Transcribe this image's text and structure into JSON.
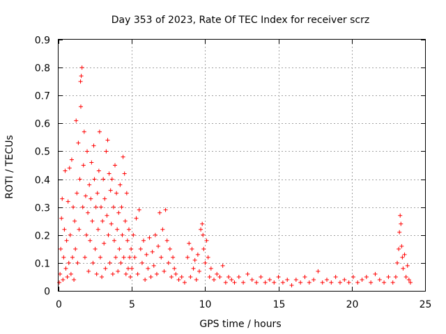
{
  "chart_data": {
    "type": "scatter",
    "title": "Day 353 of 2023, Rate Of TEC Index for receiver scrz",
    "xlabel": "GPS time / hours",
    "ylabel": "ROTI / TECUs",
    "xlim": [
      0,
      25
    ],
    "ylim": [
      0,
      0.9
    ],
    "xticks": [
      0,
      5,
      10,
      15,
      20,
      25
    ],
    "xtick_labels": [
      "0",
      "5",
      "10",
      "15",
      "20",
      "25"
    ],
    "yticks": [
      0,
      0.1,
      0.2,
      0.3,
      0.4,
      0.5,
      0.6,
      0.7,
      0.8,
      0.9
    ],
    "ytick_labels": [
      "0",
      "0.1",
      "0.2",
      "0.3",
      "0.4",
      "0.5",
      "0.6",
      "0.7",
      "0.8",
      "0.9"
    ],
    "grid": true,
    "marker": "+",
    "color": "#ff0000",
    "series": [
      {
        "name": "ROTI",
        "points": [
          [
            0.05,
            0.03
          ],
          [
            0.1,
            0.06
          ],
          [
            0.15,
            0.15
          ],
          [
            0.2,
            0.26
          ],
          [
            0.25,
            0.33
          ],
          [
            0.3,
            0.04
          ],
          [
            0.35,
            0.12
          ],
          [
            0.4,
            0.22
          ],
          [
            0.45,
            0.43
          ],
          [
            0.5,
            0.08
          ],
          [
            0.55,
            0.18
          ],
          [
            0.6,
            0.05
          ],
          [
            0.65,
            0.32
          ],
          [
            0.7,
            0.1
          ],
          [
            0.75,
            0.44
          ],
          [
            0.8,
            0.2
          ],
          [
            0.85,
            0.06
          ],
          [
            0.9,
            0.47
          ],
          [
            0.95,
            0.12
          ],
          [
            1.0,
            0.3
          ],
          [
            1.05,
            0.04
          ],
          [
            1.1,
            0.25
          ],
          [
            1.15,
            0.15
          ],
          [
            1.2,
            0.61
          ],
          [
            1.25,
            0.35
          ],
          [
            1.3,
            0.1
          ],
          [
            1.35,
            0.53
          ],
          [
            1.4,
            0.22
          ],
          [
            1.45,
            0.4
          ],
          [
            1.5,
            0.75
          ],
          [
            1.52,
            0.66
          ],
          [
            1.55,
            0.77
          ],
          [
            1.6,
            0.8
          ],
          [
            1.65,
            0.3
          ],
          [
            1.7,
            0.45
          ],
          [
            1.75,
            0.57
          ],
          [
            1.8,
            0.12
          ],
          [
            1.85,
            0.34
          ],
          [
            1.9,
            0.2
          ],
          [
            1.95,
            0.5
          ],
          [
            2.0,
            0.28
          ],
          [
            2.05,
            0.07
          ],
          [
            2.1,
            0.38
          ],
          [
            2.15,
            0.18
          ],
          [
            2.2,
            0.33
          ],
          [
            2.25,
            0.46
          ],
          [
            2.3,
            0.25
          ],
          [
            2.35,
            0.1
          ],
          [
            2.4,
            0.52
          ],
          [
            2.45,
            0.4
          ],
          [
            2.5,
            0.15
          ],
          [
            2.55,
            0.3
          ],
          [
            2.6,
            0.06
          ],
          [
            2.65,
            0.35
          ],
          [
            2.7,
            0.22
          ],
          [
            2.75,
            0.43
          ],
          [
            2.8,
            0.57
          ],
          [
            2.85,
            0.12
          ],
          [
            2.9,
            0.3
          ],
          [
            2.95,
            0.05
          ],
          [
            3.0,
            0.25
          ],
          [
            3.05,
            0.4
          ],
          [
            3.1,
            0.17
          ],
          [
            3.15,
            0.33
          ],
          [
            3.2,
            0.08
          ],
          [
            3.25,
            0.5
          ],
          [
            3.3,
            0.27
          ],
          [
            3.35,
            0.54
          ],
          [
            3.4,
            0.2
          ],
          [
            3.45,
            0.42
          ],
          [
            3.5,
            0.1
          ],
          [
            3.55,
            0.36
          ],
          [
            3.6,
            0.24
          ],
          [
            3.65,
            0.4
          ],
          [
            3.7,
            0.06
          ],
          [
            3.75,
            0.3
          ],
          [
            3.8,
            0.18
          ],
          [
            3.85,
            0.45
          ],
          [
            3.9,
            0.12
          ],
          [
            3.95,
            0.35
          ],
          [
            4.0,
            0.22
          ],
          [
            4.05,
            0.07
          ],
          [
            4.1,
            0.28
          ],
          [
            4.15,
            0.15
          ],
          [
            4.2,
            0.38
          ],
          [
            4.25,
            0.1
          ],
          [
            4.3,
            0.3
          ],
          [
            4.35,
            0.2
          ],
          [
            4.4,
            0.48
          ],
          [
            4.45,
            0.12
          ],
          [
            4.5,
            0.42
          ],
          [
            4.55,
            0.25
          ],
          [
            4.6,
            0.06
          ],
          [
            4.65,
            0.35
          ],
          [
            4.7,
            0.18
          ],
          [
            4.75,
            0.08
          ],
          [
            4.8,
            0.22
          ],
          [
            4.85,
            0.12
          ],
          [
            4.9,
            0.05
          ],
          [
            4.95,
            0.15
          ],
          [
            5.0,
            0.08
          ],
          [
            5.1,
            0.2
          ],
          [
            5.2,
            0.12
          ],
          [
            5.3,
            0.26
          ],
          [
            5.4,
            0.06
          ],
          [
            5.5,
            0.29
          ],
          [
            5.6,
            0.15
          ],
          [
            5.7,
            0.1
          ],
          [
            5.8,
            0.18
          ],
          [
            5.9,
            0.04
          ],
          [
            6.0,
            0.13
          ],
          [
            6.1,
            0.08
          ],
          [
            6.2,
            0.19
          ],
          [
            6.3,
            0.05
          ],
          [
            6.4,
            0.14
          ],
          [
            6.5,
            0.09
          ],
          [
            6.6,
            0.2
          ],
          [
            6.7,
            0.06
          ],
          [
            6.8,
            0.16
          ],
          [
            6.9,
            0.28
          ],
          [
            7.0,
            0.12
          ],
          [
            7.1,
            0.22
          ],
          [
            7.2,
            0.07
          ],
          [
            7.3,
            0.29
          ],
          [
            7.4,
            0.18
          ],
          [
            7.5,
            0.1
          ],
          [
            7.6,
            0.15
          ],
          [
            7.7,
            0.05
          ],
          [
            7.8,
            0.12
          ],
          [
            7.9,
            0.08
          ],
          [
            8.0,
            0.06
          ],
          [
            8.2,
            0.04
          ],
          [
            8.4,
            0.05
          ],
          [
            8.6,
            0.03
          ],
          [
            8.8,
            0.12
          ],
          [
            8.9,
            0.17
          ],
          [
            9.0,
            0.05
          ],
          [
            9.1,
            0.15
          ],
          [
            9.2,
            0.08
          ],
          [
            9.3,
            0.11
          ],
          [
            9.4,
            0.04
          ],
          [
            9.5,
            0.13
          ],
          [
            9.6,
            0.07
          ],
          [
            9.7,
            0.22
          ],
          [
            9.8,
            0.24
          ],
          [
            9.85,
            0.2
          ],
          [
            9.9,
            0.15
          ],
          [
            10.0,
            0.1
          ],
          [
            10.1,
            0.18
          ],
          [
            10.2,
            0.12
          ],
          [
            10.3,
            0.05
          ],
          [
            10.4,
            0.08
          ],
          [
            10.6,
            0.04
          ],
          [
            10.8,
            0.06
          ],
          [
            11.0,
            0.05
          ],
          [
            11.2,
            0.09
          ],
          [
            11.4,
            0.03
          ],
          [
            11.6,
            0.05
          ],
          [
            11.8,
            0.04
          ],
          [
            12.0,
            0.03
          ],
          [
            12.3,
            0.05
          ],
          [
            12.6,
            0.03
          ],
          [
            12.9,
            0.06
          ],
          [
            13.2,
            0.04
          ],
          [
            13.5,
            0.03
          ],
          [
            13.8,
            0.05
          ],
          [
            14.1,
            0.03
          ],
          [
            14.4,
            0.04
          ],
          [
            14.7,
            0.03
          ],
          [
            15.0,
            0.05
          ],
          [
            15.3,
            0.03
          ],
          [
            15.6,
            0.04
          ],
          [
            15.9,
            0.02
          ],
          [
            16.2,
            0.04
          ],
          [
            16.5,
            0.03
          ],
          [
            16.8,
            0.05
          ],
          [
            17.1,
            0.03
          ],
          [
            17.4,
            0.04
          ],
          [
            17.7,
            0.07
          ],
          [
            18.0,
            0.03
          ],
          [
            18.3,
            0.04
          ],
          [
            18.6,
            0.03
          ],
          [
            18.9,
            0.05
          ],
          [
            19.2,
            0.03
          ],
          [
            19.5,
            0.04
          ],
          [
            19.8,
            0.03
          ],
          [
            20.1,
            0.05
          ],
          [
            20.4,
            0.03
          ],
          [
            20.7,
            0.04
          ],
          [
            21.0,
            0.05
          ],
          [
            21.3,
            0.03
          ],
          [
            21.6,
            0.06
          ],
          [
            21.9,
            0.04
          ],
          [
            22.2,
            0.03
          ],
          [
            22.5,
            0.05
          ],
          [
            22.8,
            0.03
          ],
          [
            23.0,
            0.05
          ],
          [
            23.1,
            0.1
          ],
          [
            23.2,
            0.15
          ],
          [
            23.25,
            0.21
          ],
          [
            23.3,
            0.27
          ],
          [
            23.35,
            0.24
          ],
          [
            23.4,
            0.16
          ],
          [
            23.45,
            0.12
          ],
          [
            23.5,
            0.08
          ],
          [
            23.6,
            0.13
          ],
          [
            23.7,
            0.05
          ],
          [
            23.8,
            0.09
          ],
          [
            23.9,
            0.04
          ],
          [
            24.0,
            0.03
          ]
        ]
      }
    ]
  }
}
